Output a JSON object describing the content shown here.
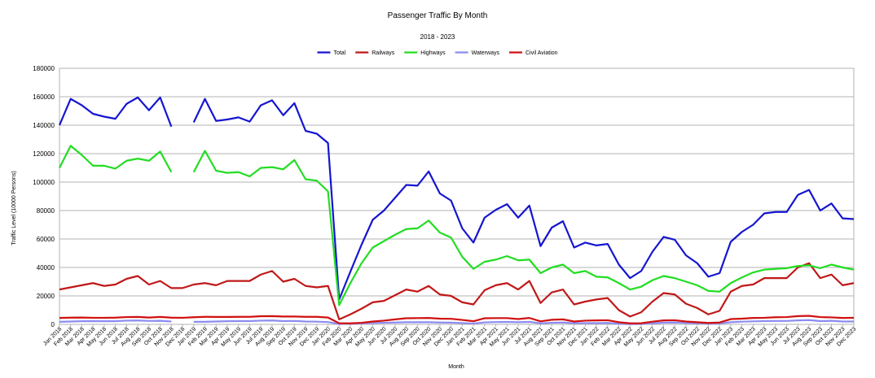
{
  "chart_data": {
    "type": "line",
    "title": "Passenger Traffic By Month",
    "subtitle": "2018 - 2023",
    "x_label": "Month",
    "y_label": "Traffic Level (10000 Persons)",
    "legend": "top",
    "grid": true,
    "categories": [
      "Jan 2018",
      "Feb 2018",
      "Mar 2018",
      "Apr 2018",
      "May 2018",
      "Jun 2018",
      "Jul 2018",
      "Aug 2018",
      "Sep 2018",
      "Oct 2018",
      "Nov 2018",
      "Dec 2018",
      "Jan 2019",
      "Feb 2019",
      "Mar 2019",
      "Apr 2019",
      "May 2019",
      "Jun 2019",
      "Jul 2019",
      "Aug 2019",
      "Sep 2019",
      "Oct 2019",
      "Nov 2019",
      "Dec 2019",
      "Jan 2020",
      "Feb 2020",
      "Mar 2020",
      "Apr 2020",
      "May 2020",
      "Jun 2020",
      "Jul 2020",
      "Aug 2020",
      "Sep 2020",
      "Oct 2020",
      "Nov 2020",
      "Dec 2020",
      "Jan 2021",
      "Feb 2021",
      "Mar 2021",
      "Apr 2021",
      "May 2021",
      "Jun 2021",
      "Jul 2021",
      "Aug 2021",
      "Sep 2021",
      "Oct 2021",
      "Nov 2021",
      "Dec 2021",
      "Jan 2022",
      "Feb 2022",
      "Mar 2022",
      "Apr 2022",
      "May 2022",
      "Jun 2022",
      "Jul 2022",
      "Aug 2022",
      "Sep 2022",
      "Oct 2022",
      "Nov 2022",
      "Dec 2022",
      "Jan 2023",
      "Feb 2023",
      "Mar 2023",
      "Apr 2023",
      "May 2023",
      "Jun 2023",
      "Jul 2023",
      "Aug 2023",
      "Sep 2023",
      "Oct 2023",
      "Nov 2023",
      "Dec 2023"
    ],
    "ylim": [
      0,
      180000
    ],
    "yticks": [
      0,
      20000,
      40000,
      60000,
      80000,
      100000,
      120000,
      140000,
      160000,
      180000
    ],
    "series": [
      {
        "name": "Total",
        "color": "#1515d0",
        "values": [
          140000,
          158500,
          154000,
          148000,
          146000,
          144500,
          155000,
          159500,
          150500,
          159500,
          139000,
          null,
          142000,
          158500,
          143000,
          144000,
          145500,
          142500,
          154000,
          157500,
          147000,
          155500,
          136000,
          134000,
          127500,
          17500,
          37000,
          56000,
          73500,
          80000,
          89000,
          98000,
          97500,
          107500,
          92000,
          87000,
          67500,
          57500,
          75000,
          80500,
          84500,
          75000,
          83500,
          55000,
          68000,
          72500,
          54000,
          57500,
          55500,
          56500,
          42000,
          32500,
          37500,
          51000,
          61500,
          59500,
          48500,
          43000,
          33500,
          36000,
          58000,
          65000,
          70000,
          78000,
          79000,
          79000,
          91000,
          94500,
          80000,
          85000,
          74500,
          74000
        ]
      },
      {
        "name": "Railways",
        "color": "#c01818",
        "values": [
          24500,
          26000,
          27500,
          29000,
          27000,
          28000,
          32000,
          34000,
          28000,
          30500,
          25500,
          25500,
          28000,
          29000,
          27500,
          30500,
          30500,
          30500,
          35000,
          37500,
          30000,
          32000,
          27000,
          26000,
          27000,
          3500,
          7000,
          11000,
          15500,
          16500,
          20500,
          24500,
          23000,
          27000,
          21000,
          20000,
          15500,
          14000,
          24000,
          27500,
          29000,
          24500,
          30500,
          15000,
          22500,
          24500,
          14000,
          16000,
          17500,
          18500,
          10000,
          5500,
          8500,
          16000,
          22000,
          21000,
          14500,
          11500,
          7000,
          9500,
          23000,
          27000,
          28000,
          32500,
          32500,
          32500,
          40000,
          43000,
          32500,
          35000,
          27500,
          29000
        ]
      },
      {
        "name": "Highways",
        "color": "#22dd22",
        "values": [
          110000,
          125500,
          119000,
          111500,
          111500,
          109500,
          115000,
          116500,
          115000,
          121500,
          107000,
          null,
          107000,
          122000,
          108000,
          106500,
          107000,
          104000,
          110000,
          110500,
          109000,
          115500,
          102000,
          101000,
          93500,
          13500,
          29000,
          43000,
          54000,
          58500,
          63000,
          67000,
          67500,
          73000,
          64500,
          61000,
          47500,
          39000,
          44000,
          45500,
          48000,
          45000,
          45500,
          36000,
          40000,
          42000,
          36000,
          37500,
          33500,
          33000,
          29000,
          24500,
          26500,
          31000,
          34000,
          32500,
          30000,
          27500,
          23500,
          23000,
          29000,
          33000,
          36500,
          38500,
          39000,
          39500,
          41000,
          41500,
          39500,
          42000,
          40000,
          38500
        ]
      },
      {
        "name": "Waterways",
        "color": "#8c8cf0",
        "values": [
          1800,
          2000,
          2200,
          2300,
          2200,
          2200,
          2600,
          2700,
          2400,
          2500,
          2000,
          null,
          1800,
          1800,
          2000,
          2200,
          2300,
          2300,
          2600,
          2700,
          2300,
          2400,
          2000,
          1900,
          1600,
          300,
          400,
          700,
          1000,
          1100,
          1300,
          1500,
          1500,
          1500,
          1300,
          1200,
          900,
          600,
          1400,
          1600,
          1700,
          1500,
          1700,
          700,
          1100,
          1300,
          800,
          900,
          900,
          1000,
          400,
          200,
          300,
          700,
          1200,
          1300,
          1000,
          800,
          500,
          600,
          1500,
          1900,
          2100,
          2300,
          2400,
          2400,
          2800,
          3000,
          2300,
          2500,
          2000,
          2000
        ]
      },
      {
        "name": "Civil Aviation",
        "color": "#d01010",
        "values": [
          4500,
          4700,
          4800,
          4600,
          4600,
          4700,
          5100,
          5200,
          4800,
          5200,
          4700,
          4600,
          5000,
          5300,
          5200,
          5200,
          5300,
          5300,
          5700,
          5800,
          5500,
          5500,
          5300,
          5300,
          4800,
          800,
          700,
          1100,
          2000,
          2600,
          3500,
          4300,
          4400,
          4500,
          4000,
          3900,
          3100,
          2200,
          4300,
          4400,
          4400,
          3700,
          4500,
          2100,
          3200,
          3500,
          2000,
          2600,
          2800,
          2900,
          1500,
          700,
          800,
          1900,
          2800,
          2900,
          2000,
          1500,
          1000,
          1300,
          3700,
          4000,
          4500,
          4600,
          5000,
          5100,
          5800,
          6000,
          5100,
          4900,
          4500,
          4600
        ]
      }
    ]
  }
}
